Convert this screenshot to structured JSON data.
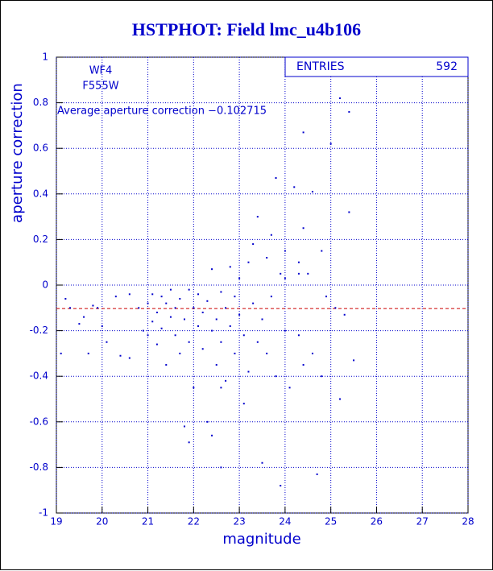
{
  "chart_data": {
    "type": "scatter",
    "title": "HSTPHOT: Field lmc_u4b106",
    "x_label": "magnitude",
    "y_label": "aperture correction",
    "stats_label": "ENTRIES",
    "stats_value": 592,
    "annotations": [
      "WF4",
      "F555W",
      "Average aperture correction −0.102715"
    ],
    "reference_line": -0.102715,
    "color": "#0000cc",
    "line_color": "#cc0000",
    "grid": true,
    "xlim": [
      19,
      28
    ],
    "xticks": [
      19,
      20,
      21,
      22,
      23,
      24,
      25,
      26,
      27,
      28
    ],
    "ylim": [
      -1,
      1
    ],
    "yticks": [
      -1,
      -0.8,
      -0.6,
      -0.4,
      -0.2,
      0,
      0.2,
      0.4,
      0.6,
      0.8,
      1
    ],
    "x": [
      19.1,
      19.2,
      19.3,
      19.5,
      19.6,
      19.7,
      19.8,
      19.9,
      20.0,
      20.1,
      20.3,
      20.4,
      20.6,
      20.6,
      20.8,
      20.9,
      21.0,
      21.0,
      21.1,
      21.1,
      21.2,
      21.2,
      21.3,
      21.3,
      21.4,
      21.4,
      21.5,
      21.5,
      21.6,
      21.6,
      21.7,
      21.7,
      21.8,
      21.8,
      21.9,
      21.9,
      22.0,
      22.0,
      22.1,
      22.1,
      22.2,
      22.2,
      22.3,
      22.3,
      22.4,
      22.4,
      22.5,
      22.5,
      22.6,
      22.6,
      22.7,
      22.7,
      22.8,
      22.8,
      22.9,
      22.9,
      23.0,
      23.0,
      23.1,
      23.1,
      23.2,
      23.2,
      23.3,
      23.3,
      23.4,
      23.4,
      23.5,
      23.5,
      23.6,
      23.6,
      23.7,
      23.7,
      23.8,
      23.8,
      23.9,
      23.9,
      24.0,
      24.0,
      24.1,
      24.2,
      24.3,
      24.3,
      24.4,
      24.4,
      24.5,
      24.6,
      24.6,
      24.7,
      24.8,
      24.8,
      24.9,
      25.0,
      25.1,
      25.2,
      25.2,
      25.3,
      25.4,
      25.4,
      25.5,
      24.4,
      22.6,
      22.4,
      21.9,
      22.6,
      24.3,
      24.0
    ],
    "y": [
      -0.3,
      -0.06,
      -0.1,
      -0.17,
      -0.14,
      -0.3,
      -0.09,
      -0.1,
      -0.18,
      -0.25,
      -0.05,
      -0.31,
      -0.04,
      -0.32,
      -0.1,
      -0.2,
      -0.08,
      -0.22,
      -0.04,
      -0.16,
      -0.12,
      -0.26,
      -0.05,
      -0.19,
      -0.08,
      -0.35,
      -0.14,
      -0.02,
      -0.22,
      -0.1,
      -0.3,
      -0.06,
      -0.15,
      -0.62,
      -0.02,
      -0.25,
      -0.1,
      -0.45,
      -0.18,
      -0.04,
      -0.28,
      -0.12,
      -0.6,
      -0.07,
      -0.2,
      0.07,
      -0.15,
      -0.35,
      -0.03,
      -0.25,
      -0.1,
      -0.42,
      -0.18,
      0.08,
      -0.05,
      -0.3,
      -0.13,
      0.03,
      -0.22,
      -0.52,
      0.1,
      -0.38,
      0.18,
      -0.08,
      -0.25,
      0.3,
      -0.15,
      -0.78,
      0.12,
      -0.3,
      0.22,
      -0.05,
      0.47,
      -0.4,
      0.05,
      -0.88,
      0.15,
      -0.2,
      -0.45,
      0.43,
      0.1,
      -0.22,
      0.25,
      -0.35,
      0.05,
      0.41,
      -0.3,
      -0.83,
      0.15,
      -0.4,
      -0.05,
      0.62,
      -0.1,
      0.82,
      -0.5,
      -0.13,
      0.32,
      0.76,
      -0.33,
      0.67,
      -0.8,
      -0.66,
      -0.69,
      -0.45,
      0.05,
      0.03
    ]
  }
}
